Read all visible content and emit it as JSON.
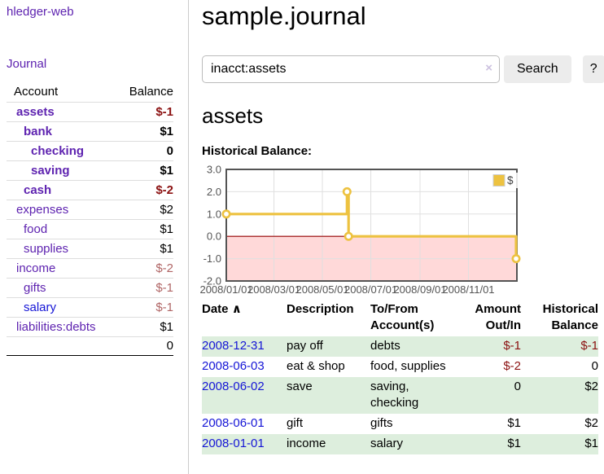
{
  "colors": {
    "link_purple": "#5e23b0",
    "link_blue": "#1515d6",
    "negative_strong": "#8b1111",
    "negative_muted": "#b06565",
    "row_stripe_green": "#ddeedd",
    "chart_series_gold": "#EDC240",
    "chart_negative_fill": "#ffd9d9",
    "chart_zero_line": "#990000"
  },
  "sidebar": {
    "brand": "hledger-web",
    "journal_link": "Journal",
    "headers": {
      "account": "Account",
      "balance": "Balance"
    },
    "accounts": [
      {
        "name": "assets",
        "balance": "$-1",
        "indent": 0,
        "bold": true,
        "balance_style": "neg-strong",
        "link": "purple"
      },
      {
        "name": "bank",
        "balance": "$1",
        "indent": 1,
        "bold": true,
        "balance_style": "normal",
        "link": "purple"
      },
      {
        "name": "checking",
        "balance": "0",
        "indent": 2,
        "bold": true,
        "balance_style": "normal",
        "link": "purple"
      },
      {
        "name": "saving",
        "balance": "$1",
        "indent": 2,
        "bold": true,
        "balance_style": "normal",
        "link": "purple"
      },
      {
        "name": "cash",
        "balance": "$-2",
        "indent": 1,
        "bold": true,
        "balance_style": "neg-strong",
        "link": "purple"
      },
      {
        "name": "expenses",
        "balance": "$2",
        "indent": 0,
        "bold": false,
        "balance_style": "normal",
        "link": "purple"
      },
      {
        "name": "food",
        "balance": "$1",
        "indent": 1,
        "bold": false,
        "balance_style": "normal",
        "link": "purple"
      },
      {
        "name": "supplies",
        "balance": "$1",
        "indent": 1,
        "bold": false,
        "balance_style": "normal",
        "link": "purple"
      },
      {
        "name": "income",
        "balance": "$-2",
        "indent": 0,
        "bold": false,
        "balance_style": "neg-muted",
        "link": "purple"
      },
      {
        "name": "gifts",
        "balance": "$-1",
        "indent": 1,
        "bold": false,
        "balance_style": "neg-muted",
        "link": "purple"
      },
      {
        "name": "salary",
        "balance": "$-1",
        "indent": 1,
        "bold": false,
        "balance_style": "neg-muted",
        "link": "blue"
      },
      {
        "name": "liabilities:debts",
        "balance": "$1",
        "indent": 0,
        "bold": false,
        "balance_style": "normal",
        "link": "purple"
      }
    ],
    "total": "0"
  },
  "header": {
    "title": "sample.journal"
  },
  "search": {
    "value": "inacct:assets",
    "clear_icon": "×",
    "button_label": "Search",
    "help_label": "?"
  },
  "account_page": {
    "heading": "assets",
    "chart_label": "Historical Balance:"
  },
  "chart_data": {
    "type": "line",
    "title": "Historical Balance:",
    "step": true,
    "ylim": [
      -2,
      3
    ],
    "y_ticks": [
      "3.0",
      "2.0",
      "1.0",
      "0.0",
      "-1.0",
      "-2.0"
    ],
    "x_ticks": [
      "2008/01/01",
      "2008/03/01",
      "2008/05/01",
      "2008/07/01",
      "2008/09/01",
      "2008/11/01"
    ],
    "x_range": [
      "2008-01-01",
      "2009-01-01"
    ],
    "grid": true,
    "negative_region_below_zero": true,
    "legend_position": "top-right",
    "series": [
      {
        "name": "$",
        "color": "#EDC240",
        "points": [
          {
            "x": "2008-01-01",
            "y": 1
          },
          {
            "x": "2008-06-01",
            "y": 2
          },
          {
            "x": "2008-06-03",
            "y": 0
          },
          {
            "x": "2008-12-31",
            "y": -1
          }
        ]
      }
    ]
  },
  "register": {
    "headers": {
      "date": "Date",
      "sort_icon": "∧",
      "description": "Description",
      "accounts": "To/From Account(s)",
      "amount": "Amount Out/In",
      "balance": "Historical Balance"
    },
    "rows": [
      {
        "date": "2008-12-31",
        "description": "pay off",
        "accounts": "debts",
        "amount": "$-1",
        "amount_negative": true,
        "balance": "$-1",
        "balance_negative": true
      },
      {
        "date": "2008-06-03",
        "description": "eat & shop",
        "accounts": "food, supplies",
        "amount": "$-2",
        "amount_negative": true,
        "balance": "0",
        "balance_negative": false
      },
      {
        "date": "2008-06-02",
        "description": "save",
        "accounts": "saving, checking",
        "amount": "0",
        "amount_negative": false,
        "balance": "$2",
        "balance_negative": false
      },
      {
        "date": "2008-06-01",
        "description": "gift",
        "accounts": "gifts",
        "amount": "$1",
        "amount_negative": false,
        "balance": "$2",
        "balance_negative": false
      },
      {
        "date": "2008-01-01",
        "description": "income",
        "accounts": "salary",
        "amount": "$1",
        "amount_negative": false,
        "balance": "$1",
        "balance_negative": false
      }
    ]
  }
}
